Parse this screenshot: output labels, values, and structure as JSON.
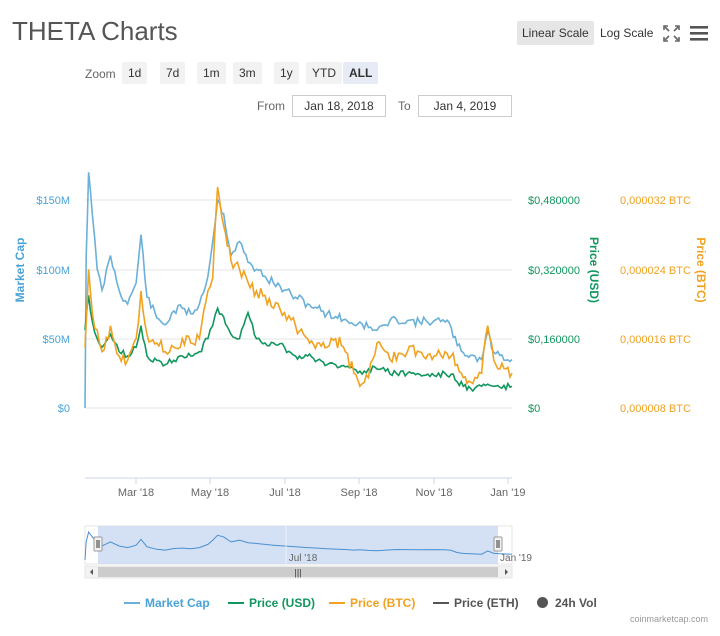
{
  "header": {
    "title": "THETA Charts"
  },
  "toolbar": {
    "linear_label": "Linear Scale",
    "log_label": "Log Scale",
    "fullscreen_icon": "fullscreen-icon",
    "menu_icon": "menu-icon"
  },
  "zoom": {
    "label": "Zoom",
    "options": [
      "1d",
      "7d",
      "1m",
      "3m",
      "1y",
      "YTD",
      "ALL"
    ],
    "active": "ALL"
  },
  "range": {
    "from_label": "From",
    "from_value": "Jan 18, 2018",
    "to_label": "To",
    "to_value": "Jan 4, 2019"
  },
  "colors": {
    "market_cap": "#6ab0d8",
    "price_usd": "#11965e",
    "price_btc": "#f0a220",
    "price_eth": "#555555",
    "vol": "#555555",
    "navigator_fill": "#c9d8f0"
  },
  "legend": [
    {
      "name": "Market Cap",
      "type": "line"
    },
    {
      "name": "Price (USD)",
      "type": "line"
    },
    {
      "name": "Price (BTC)",
      "type": "line"
    },
    {
      "name": "Price (ETH)",
      "type": "line"
    },
    {
      "name": "24h Vol",
      "type": "dot"
    }
  ],
  "watermark": "coinmarketcap.com",
  "chart_data": {
    "type": "line",
    "x_range": [
      "2018-01-18",
      "2019-01-04"
    ],
    "x_ticks": [
      "Mar '18",
      "May '18",
      "Jul '18",
      "Sep '18",
      "Nov '18",
      "Jan '19"
    ],
    "axes": {
      "left": {
        "label": "Market Cap",
        "ticks": [
          "$0",
          "$50M",
          "$100M",
          "$150M"
        ],
        "range": [
          0,
          150000000
        ]
      },
      "right1": {
        "label": "Price (USD)",
        "ticks": [
          "$0",
          "$0,160000",
          "$0,320000",
          "$0,480000"
        ],
        "range": [
          0,
          0.48
        ]
      },
      "right2": {
        "label": "Price (BTC)",
        "ticks": [
          "0,000008 BTC",
          "0,000016 BTC",
          "0,000024 BTC",
          "0,000032 BTC"
        ],
        "range": [
          8e-06,
          3.2e-05
        ]
      }
    },
    "grid": true,
    "navigator": {
      "tick_labels": [
        "Jul '18",
        "Jan '19"
      ]
    },
    "series": [
      {
        "name": "Market Cap",
        "axis": "left",
        "x": [
          "2018-01-18",
          "2018-01-19",
          "2018-01-21",
          "2018-01-24",
          "2018-01-28",
          "2018-02-01",
          "2018-02-08",
          "2018-02-15",
          "2018-02-22",
          "2018-03-01",
          "2018-03-05",
          "2018-03-10",
          "2018-03-18",
          "2018-03-25",
          "2018-04-01",
          "2018-04-08",
          "2018-04-15",
          "2018-04-22",
          "2018-04-29",
          "2018-05-03",
          "2018-05-07",
          "2018-05-12",
          "2018-05-18",
          "2018-05-25",
          "2018-06-01",
          "2018-06-08",
          "2018-06-15",
          "2018-06-22",
          "2018-07-01",
          "2018-07-10",
          "2018-07-20",
          "2018-07-28",
          "2018-08-05",
          "2018-08-12",
          "2018-08-20",
          "2018-08-27",
          "2018-09-01",
          "2018-09-08",
          "2018-09-15",
          "2018-09-22",
          "2018-10-01",
          "2018-10-10",
          "2018-10-20",
          "2018-11-01",
          "2018-11-10",
          "2018-11-15",
          "2018-11-20",
          "2018-11-25",
          "2018-12-01",
          "2018-12-10",
          "2018-12-15",
          "2018-12-20",
          "2018-12-25",
          "2019-01-04"
        ],
        "values": [
          0,
          110000000,
          170000000,
          140000000,
          100000000,
          85000000,
          110000000,
          85000000,
          75000000,
          90000000,
          125000000,
          80000000,
          65000000,
          60000000,
          70000000,
          72000000,
          68000000,
          75000000,
          95000000,
          120000000,
          150000000,
          140000000,
          110000000,
          120000000,
          105000000,
          100000000,
          95000000,
          90000000,
          85000000,
          80000000,
          75000000,
          72000000,
          68000000,
          66000000,
          64000000,
          60000000,
          62000000,
          58000000,
          56000000,
          60000000,
          64000000,
          63000000,
          62000000,
          63000000,
          62000000,
          58000000,
          45000000,
          40000000,
          38000000,
          35000000,
          55000000,
          40000000,
          38000000,
          35000000
        ]
      },
      {
        "name": "Price (USD)",
        "axis": "right1",
        "x": [
          "2018-01-18",
          "2018-01-21",
          "2018-01-24",
          "2018-01-28",
          "2018-02-01",
          "2018-02-08",
          "2018-02-15",
          "2018-02-22",
          "2018-03-01",
          "2018-03-05",
          "2018-03-10",
          "2018-03-18",
          "2018-03-25",
          "2018-04-01",
          "2018-04-08",
          "2018-04-15",
          "2018-04-22",
          "2018-04-29",
          "2018-05-03",
          "2018-05-07",
          "2018-05-12",
          "2018-05-18",
          "2018-05-25",
          "2018-06-01",
          "2018-06-08",
          "2018-06-15",
          "2018-06-22",
          "2018-07-01",
          "2018-07-10",
          "2018-07-20",
          "2018-07-28",
          "2018-08-05",
          "2018-08-12",
          "2018-08-20",
          "2018-08-27",
          "2018-09-01",
          "2018-09-08",
          "2018-09-15",
          "2018-09-22",
          "2018-10-01",
          "2018-10-10",
          "2018-10-20",
          "2018-11-01",
          "2018-11-10",
          "2018-11-15",
          "2018-11-20",
          "2018-11-25",
          "2018-12-01",
          "2018-12-10",
          "2018-12-15",
          "2018-12-20",
          "2018-12-25",
          "2019-01-04"
        ],
        "values": [
          0.18,
          0.26,
          0.2,
          0.16,
          0.14,
          0.17,
          0.13,
          0.12,
          0.14,
          0.19,
          0.12,
          0.11,
          0.1,
          0.11,
          0.12,
          0.12,
          0.13,
          0.16,
          0.19,
          0.23,
          0.21,
          0.17,
          0.16,
          0.22,
          0.16,
          0.15,
          0.15,
          0.14,
          0.12,
          0.12,
          0.11,
          0.1,
          0.1,
          0.095,
          0.09,
          0.085,
          0.09,
          0.09,
          0.085,
          0.08,
          0.08,
          0.078,
          0.075,
          0.08,
          0.078,
          0.06,
          0.05,
          0.045,
          0.05,
          0.055,
          0.05,
          0.048,
          0.05
        ]
      },
      {
        "name": "Price (BTC)",
        "axis": "right2",
        "x": [
          "2018-01-18",
          "2018-01-21",
          "2018-01-24",
          "2018-01-28",
          "2018-02-01",
          "2018-02-08",
          "2018-02-15",
          "2018-02-22",
          "2018-03-01",
          "2018-03-05",
          "2018-03-10",
          "2018-03-18",
          "2018-03-25",
          "2018-04-01",
          "2018-04-08",
          "2018-04-15",
          "2018-04-22",
          "2018-04-29",
          "2018-05-03",
          "2018-05-07",
          "2018-05-12",
          "2018-05-18",
          "2018-05-25",
          "2018-06-01",
          "2018-06-08",
          "2018-06-15",
          "2018-06-22",
          "2018-07-01",
          "2018-07-10",
          "2018-07-20",
          "2018-07-28",
          "2018-08-05",
          "2018-08-12",
          "2018-08-20",
          "2018-08-27",
          "2018-09-01",
          "2018-09-08",
          "2018-09-15",
          "2018-09-22",
          "2018-10-01",
          "2018-10-10",
          "2018-10-20",
          "2018-11-01",
          "2018-11-10",
          "2018-11-15",
          "2018-11-20",
          "2018-11-25",
          "2018-12-01",
          "2018-12-10",
          "2018-12-15",
          "2018-12-20",
          "2018-12-25",
          "2019-01-04"
        ],
        "values": [
          1.5e-05,
          2.4e-05,
          1.9e-05,
          1.7e-05,
          1.45e-05,
          1.75e-05,
          1.4e-05,
          1.35e-05,
          1.6e-05,
          2.15e-05,
          1.65e-05,
          1.55e-05,
          1.45e-05,
          1.5e-05,
          1.6e-05,
          1.55e-05,
          1.6e-05,
          2.15e-05,
          2.3e-05,
          3.35e-05,
          2.9e-05,
          2.5e-05,
          2.4e-05,
          2.25e-05,
          2.15e-05,
          2.1e-05,
          1.95e-05,
          1.9e-05,
          1.75e-05,
          1.6e-05,
          1.55e-05,
          1.5e-05,
          1.6e-05,
          1.45e-05,
          1.2e-05,
          1.05e-05,
          1.15e-05,
          1.55e-05,
          1.45e-05,
          1.35e-05,
          1.45e-05,
          1.45e-05,
          1.4e-05,
          1.45e-05,
          1.4e-05,
          1.3e-05,
          1.15e-05,
          1.1e-05,
          1.2e-05,
          1.75e-05,
          1.35e-05,
          1.25e-05,
          1.2e-05
        ]
      }
    ]
  }
}
